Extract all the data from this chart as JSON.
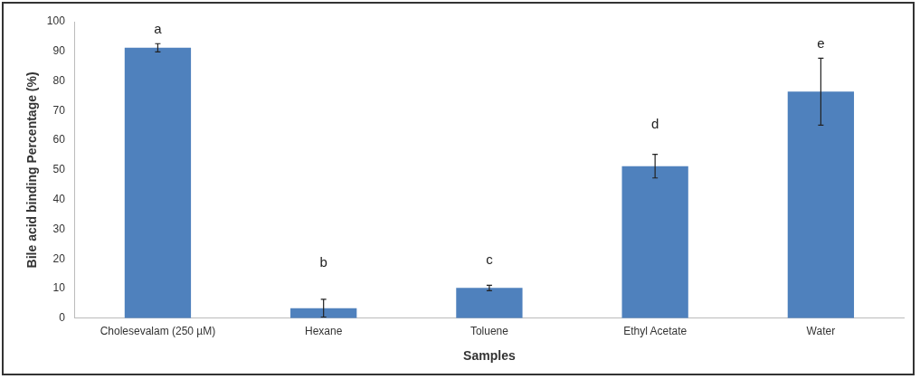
{
  "chart_data": {
    "type": "bar",
    "xlabel": "Samples",
    "ylabel": "Bile acid binding Percentage (%)",
    "categories": [
      "Cholesevalam (250 µM)",
      "Hexane",
      "Toluene",
      "Ethyl Acetate",
      "Water"
    ],
    "values": [
      91.2,
      3.4,
      10.2,
      51.3,
      76.4
    ],
    "errors": [
      1.4,
      3,
      0.9,
      4,
      11.3
    ],
    "color": "#4f81bd",
    "ylim": [
      0,
      100
    ],
    "yticks": [
      0,
      10,
      20,
      30,
      40,
      50,
      60,
      70,
      80,
      90,
      100
    ],
    "grid": false,
    "annotations": [
      "a",
      "b",
      "c",
      "d",
      "e"
    ]
  }
}
